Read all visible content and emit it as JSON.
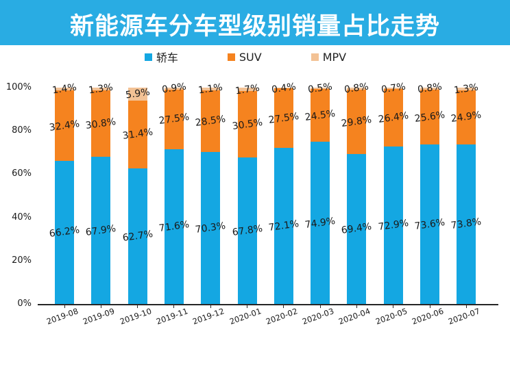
{
  "title": "新能源车分车型级别销量占比走势",
  "colors": {
    "banner_background": "#29ACE3",
    "banner_text": "#FFFFFF",
    "sedan_blue": "#14A7E2",
    "suv_orange": "#F5831F",
    "mpv_tan": "#F3C295",
    "axis": "#262626",
    "label_text": "#1A1A1A"
  },
  "legend": {
    "items": [
      {
        "label": "轿车",
        "color": "#14A7E2"
      },
      {
        "label": "SUV",
        "color": "#F5831F"
      },
      {
        "label": "MPV",
        "color": "#F3C295"
      }
    ]
  },
  "chart_data": {
    "type": "bar",
    "stacked": true,
    "title": "新能源车分车型级别销量占比走势",
    "categories": [
      "2019-08",
      "2019-09",
      "2019-10",
      "2019-11",
      "2019-12",
      "2020-01",
      "2020-02",
      "2020-03",
      "2020-04",
      "2020-05",
      "2020-06",
      "2020-07"
    ],
    "series": [
      {
        "name": "轿车",
        "color": "#14A7E2",
        "values": [
          66.2,
          67.9,
          62.7,
          71.6,
          70.3,
          67.8,
          72.1,
          74.9,
          69.4,
          72.9,
          73.6,
          73.8
        ]
      },
      {
        "name": "SUV",
        "color": "#F5831F",
        "values": [
          32.4,
          30.8,
          31.4,
          27.5,
          28.5,
          30.5,
          27.5,
          24.5,
          29.8,
          26.4,
          25.6,
          24.9
        ]
      },
      {
        "name": "MPV",
        "color": "#F3C295",
        "values": [
          1.4,
          1.3,
          5.9,
          0.9,
          1.1,
          1.7,
          0.4,
          0.5,
          0.8,
          0.7,
          0.8,
          1.3
        ]
      }
    ],
    "unit": "%",
    "y_ticks": [
      0,
      20,
      40,
      60,
      80,
      100
    ],
    "y_tick_suffix": "%",
    "ylim": [
      0,
      100
    ],
    "grid": false,
    "legend_position": "top",
    "data_labels": true,
    "data_label_decimals": 1
  }
}
